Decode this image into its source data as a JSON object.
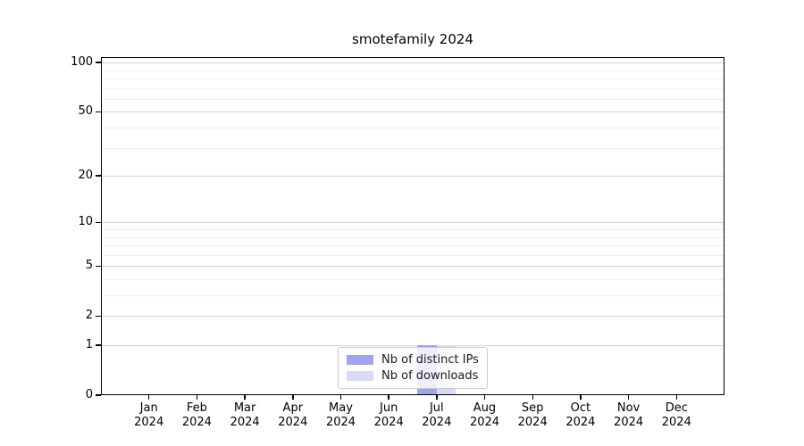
{
  "chart_data": {
    "type": "bar",
    "title": "smotefamily 2024",
    "categories": [
      "Jan 2024",
      "Feb 2024",
      "Mar 2024",
      "Apr 2024",
      "May 2024",
      "Jun 2024",
      "Jul 2024",
      "Aug 2024",
      "Sep 2024",
      "Oct 2024",
      "Nov 2024",
      "Dec 2024"
    ],
    "series": [
      {
        "name": "Nb of distinct IPs",
        "color": "#a3a3ec",
        "values": [
          0,
          0,
          0,
          0,
          0,
          0,
          1,
          0,
          0,
          0,
          0,
          0
        ]
      },
      {
        "name": "Nb of downloads",
        "color": "#d9d9f6",
        "values": [
          0,
          0,
          0,
          0,
          0,
          0,
          1,
          0,
          0,
          0,
          0,
          0
        ]
      }
    ],
    "xlabel": "",
    "ylabel": "",
    "yscale": "log1p",
    "ylim": [
      0,
      108
    ],
    "y_major_ticks": [
      0,
      1,
      2,
      5,
      10,
      20,
      50,
      100
    ],
    "y_minor_gridlines": [
      3,
      4,
      6,
      7,
      8,
      9,
      30,
      40,
      60,
      70,
      80,
      90
    ],
    "grid": "horizontal",
    "legend_position": "lower center",
    "colors": {
      "axis": "#000000",
      "grid_major": "#d2d2d2",
      "grid_minor": "#efefef",
      "background": "#ffffff"
    }
  }
}
